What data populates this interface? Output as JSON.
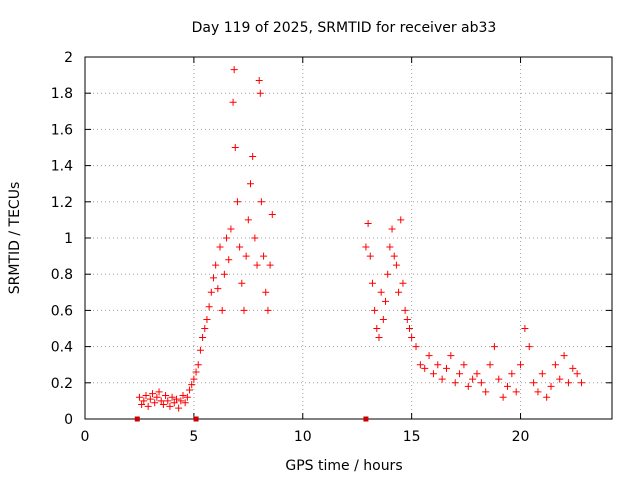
{
  "chart_data": {
    "type": "scatter",
    "title": "Day 119 of 2025, SRMTID for receiver ab33",
    "xlabel": "GPS time / hours",
    "ylabel": "SRMTID / TECUs",
    "xlim": [
      0,
      24.2
    ],
    "ylim": [
      0,
      2
    ],
    "x_ticks": [
      0,
      5,
      10,
      15,
      20
    ],
    "x_tick_labels": [
      "0",
      "5",
      "10",
      "15",
      "20"
    ],
    "y_ticks": [
      0,
      0.2,
      0.4,
      0.6,
      0.8,
      1,
      1.2,
      1.4,
      1.6,
      1.8,
      2
    ],
    "y_tick_labels": [
      "0",
      "0.2",
      "0.4",
      "0.6",
      "0.8",
      "1",
      "1.2",
      "1.4",
      "1.6",
      "1.8",
      "2"
    ],
    "grid": true,
    "marker": "plus",
    "series": [
      {
        "name": "SRMTID",
        "color": "#ff0000",
        "x": [
          2.5,
          2.6,
          2.7,
          2.8,
          2.9,
          3.0,
          3.1,
          3.2,
          3.3,
          3.4,
          3.5,
          3.6,
          3.7,
          3.8,
          3.9,
          4.0,
          4.1,
          4.2,
          4.3,
          4.4,
          4.5,
          4.6,
          4.7,
          4.8,
          4.9,
          5.0,
          5.1,
          5.2,
          5.3,
          5.4,
          5.5,
          5.6,
          5.7,
          5.8,
          5.9,
          6.0,
          6.1,
          6.2,
          6.3,
          6.4,
          6.5,
          6.6,
          6.7,
          6.8,
          6.85,
          6.9,
          7.0,
          7.1,
          7.2,
          7.3,
          7.4,
          7.5,
          7.6,
          7.7,
          7.8,
          7.9,
          8.0,
          8.05,
          8.1,
          8.2,
          8.3,
          8.4,
          8.5,
          8.6,
          12.9,
          13.0,
          13.1,
          13.2,
          13.3,
          13.4,
          13.5,
          13.6,
          13.7,
          13.8,
          13.9,
          14.0,
          14.1,
          14.2,
          14.3,
          14.4,
          14.5,
          14.6,
          14.7,
          14.8,
          14.9,
          15.0,
          15.2,
          15.4,
          15.6,
          15.8,
          16.0,
          16.2,
          16.4,
          16.6,
          16.8,
          17.0,
          17.2,
          17.4,
          17.6,
          17.8,
          18.0,
          18.2,
          18.4,
          18.6,
          18.8,
          19.0,
          19.2,
          19.4,
          19.6,
          19.8,
          20.0,
          20.2,
          20.4,
          20.6,
          20.8,
          21.0,
          21.2,
          21.4,
          21.6,
          21.8,
          22.0,
          22.2,
          22.4,
          22.6,
          22.8
        ],
        "y": [
          0.12,
          0.08,
          0.1,
          0.13,
          0.07,
          0.11,
          0.14,
          0.09,
          0.12,
          0.15,
          0.1,
          0.08,
          0.13,
          0.1,
          0.07,
          0.12,
          0.09,
          0.11,
          0.06,
          0.1,
          0.13,
          0.09,
          0.12,
          0.16,
          0.19,
          0.22,
          0.26,
          0.3,
          0.38,
          0.45,
          0.5,
          0.55,
          0.62,
          0.7,
          0.78,
          0.85,
          0.72,
          0.95,
          0.6,
          0.8,
          1.0,
          0.88,
          1.05,
          1.75,
          1.93,
          1.5,
          1.2,
          0.95,
          0.75,
          0.6,
          0.9,
          1.1,
          1.3,
          1.45,
          1.0,
          0.85,
          1.87,
          1.8,
          1.2,
          0.9,
          0.7,
          0.6,
          0.85,
          1.13,
          0.95,
          1.08,
          0.9,
          0.75,
          0.6,
          0.5,
          0.45,
          0.7,
          0.55,
          0.65,
          0.8,
          0.95,
          1.05,
          0.9,
          0.85,
          0.7,
          1.1,
          0.75,
          0.6,
          0.55,
          0.5,
          0.45,
          0.4,
          0.3,
          0.28,
          0.35,
          0.25,
          0.3,
          0.22,
          0.28,
          0.35,
          0.2,
          0.25,
          0.3,
          0.18,
          0.22,
          0.25,
          0.2,
          0.15,
          0.3,
          0.4,
          0.22,
          0.12,
          0.18,
          0.25,
          0.15,
          0.3,
          0.5,
          0.4,
          0.2,
          0.15,
          0.25,
          0.12,
          0.18,
          0.3,
          0.22,
          0.35,
          0.2,
          0.28,
          0.25,
          0.2
        ]
      }
    ],
    "edge_markers": {
      "color": "#cc0000",
      "x": [
        2.4,
        5.1,
        12.9
      ],
      "y": [
        0,
        0,
        0
      ]
    }
  }
}
